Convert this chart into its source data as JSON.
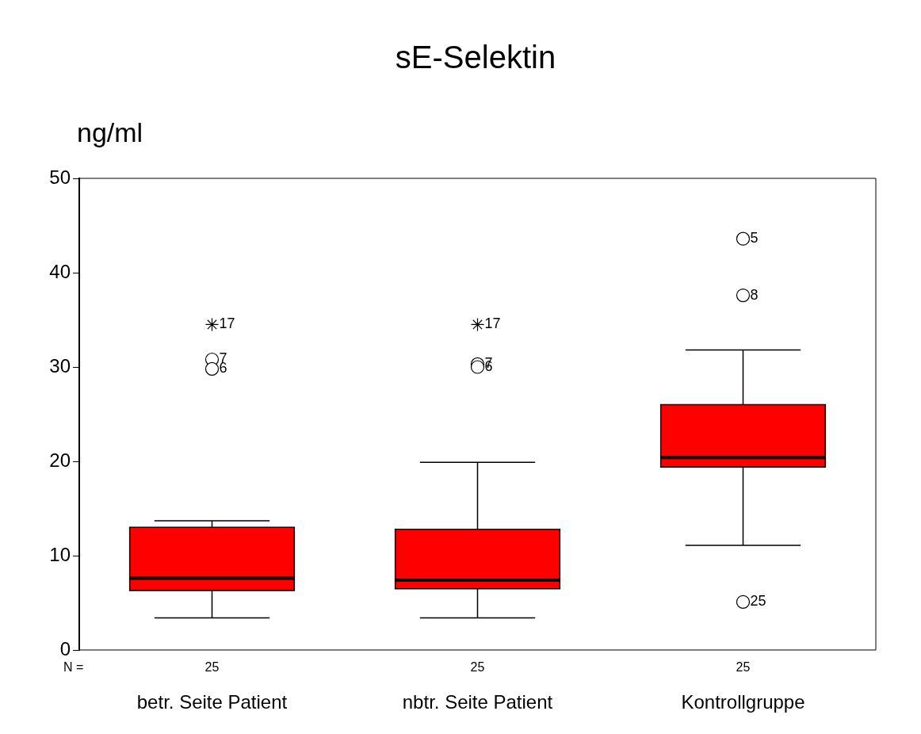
{
  "chart_data": {
    "type": "box",
    "title": "sE-Selektin",
    "ylabel": "ng/ml",
    "categories": [
      "betr. Seite Patient",
      "nbtr. Seite Patient",
      "Kontrollgruppe"
    ],
    "series": [
      {
        "type": "box",
        "color": "#ff0000",
        "boxes": [
          {
            "low": 3.4,
            "q1": 6.3,
            "median": 7.6,
            "q3": 13.0,
            "high": 13.7,
            "outliers": [
              30.8,
              29.8
            ]
          },
          {
            "low": 3.4,
            "q1": 6.5,
            "median": 7.4,
            "q3": 12.8,
            "high": 19.9,
            "outliers": [
              30.3,
              30.0
            ]
          },
          {
            "low": 11.1,
            "q1": 19.4,
            "median": 20.4,
            "q3": 26.0,
            "high": 31.8,
            "outliers": [
              43.6,
              37.6,
              5.1
            ]
          }
        ]
      },
      {
        "type": "scatter",
        "marker": "cross",
        "color": "#000000",
        "x": [
          "betr. Seite Patient",
          "nbtr. Seite Patient"
        ],
        "values": [
          34.5,
          34.5
        ]
      }
    ],
    "ylim": [
      0,
      50
    ],
    "yticks": [
      0,
      10,
      20,
      30,
      40,
      50
    ],
    "grid": false,
    "annotations": [
      {
        "text": "17",
        "x": "betr. Seite Patient",
        "y": 34.5
      },
      {
        "text": "17",
        "x": "nbtr. Seite Patient",
        "y": 34.5
      },
      "7",
      "6",
      "7",
      "6",
      "5",
      "8",
      "25",
      "N =",
      "25",
      "25",
      "25"
    ]
  }
}
